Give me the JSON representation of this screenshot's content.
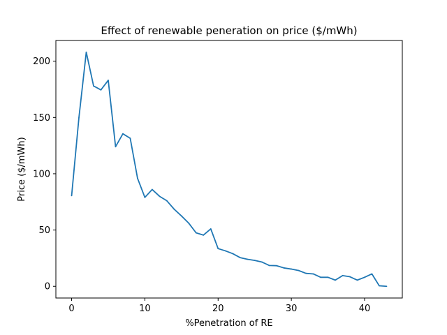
{
  "chart_data": {
    "type": "line",
    "title": "Effect of renewable peneration on price ($/mWh)",
    "xlabel": "%Penetration of RE",
    "ylabel": "Price ($/mWh)",
    "xlim": [
      -2.15,
      45.15
    ],
    "ylim": [
      -10.4,
      218.4
    ],
    "xticks": [
      0,
      10,
      20,
      30,
      40
    ],
    "yticks": [
      0,
      50,
      100,
      150,
      200
    ],
    "grid": false,
    "series": [
      {
        "color": "#1f77b4",
        "x": [
          0,
          1,
          2,
          3,
          4,
          5,
          6,
          7,
          8,
          9,
          10,
          11,
          12,
          13,
          14,
          15,
          16,
          17,
          18,
          19,
          20,
          21,
          22,
          23,
          24,
          25,
          26,
          27,
          28,
          29,
          30,
          31,
          32,
          33,
          34,
          35,
          36,
          37,
          38,
          39,
          40,
          41,
          42,
          43
        ],
        "y": [
          80.5,
          150,
          208,
          178,
          174.5,
          183,
          124,
          135.5,
          131.5,
          96,
          79,
          86,
          80,
          76,
          68.5,
          62.5,
          56,
          47.5,
          45.5,
          51,
          33.5,
          31.5,
          29,
          25.5,
          24,
          23,
          21.5,
          18.5,
          18.3,
          16.3,
          15.3,
          14,
          11.5,
          11,
          8,
          8,
          5.5,
          9.5,
          8.5,
          5.5,
          8,
          11,
          0.5,
          0
        ]
      }
    ]
  }
}
